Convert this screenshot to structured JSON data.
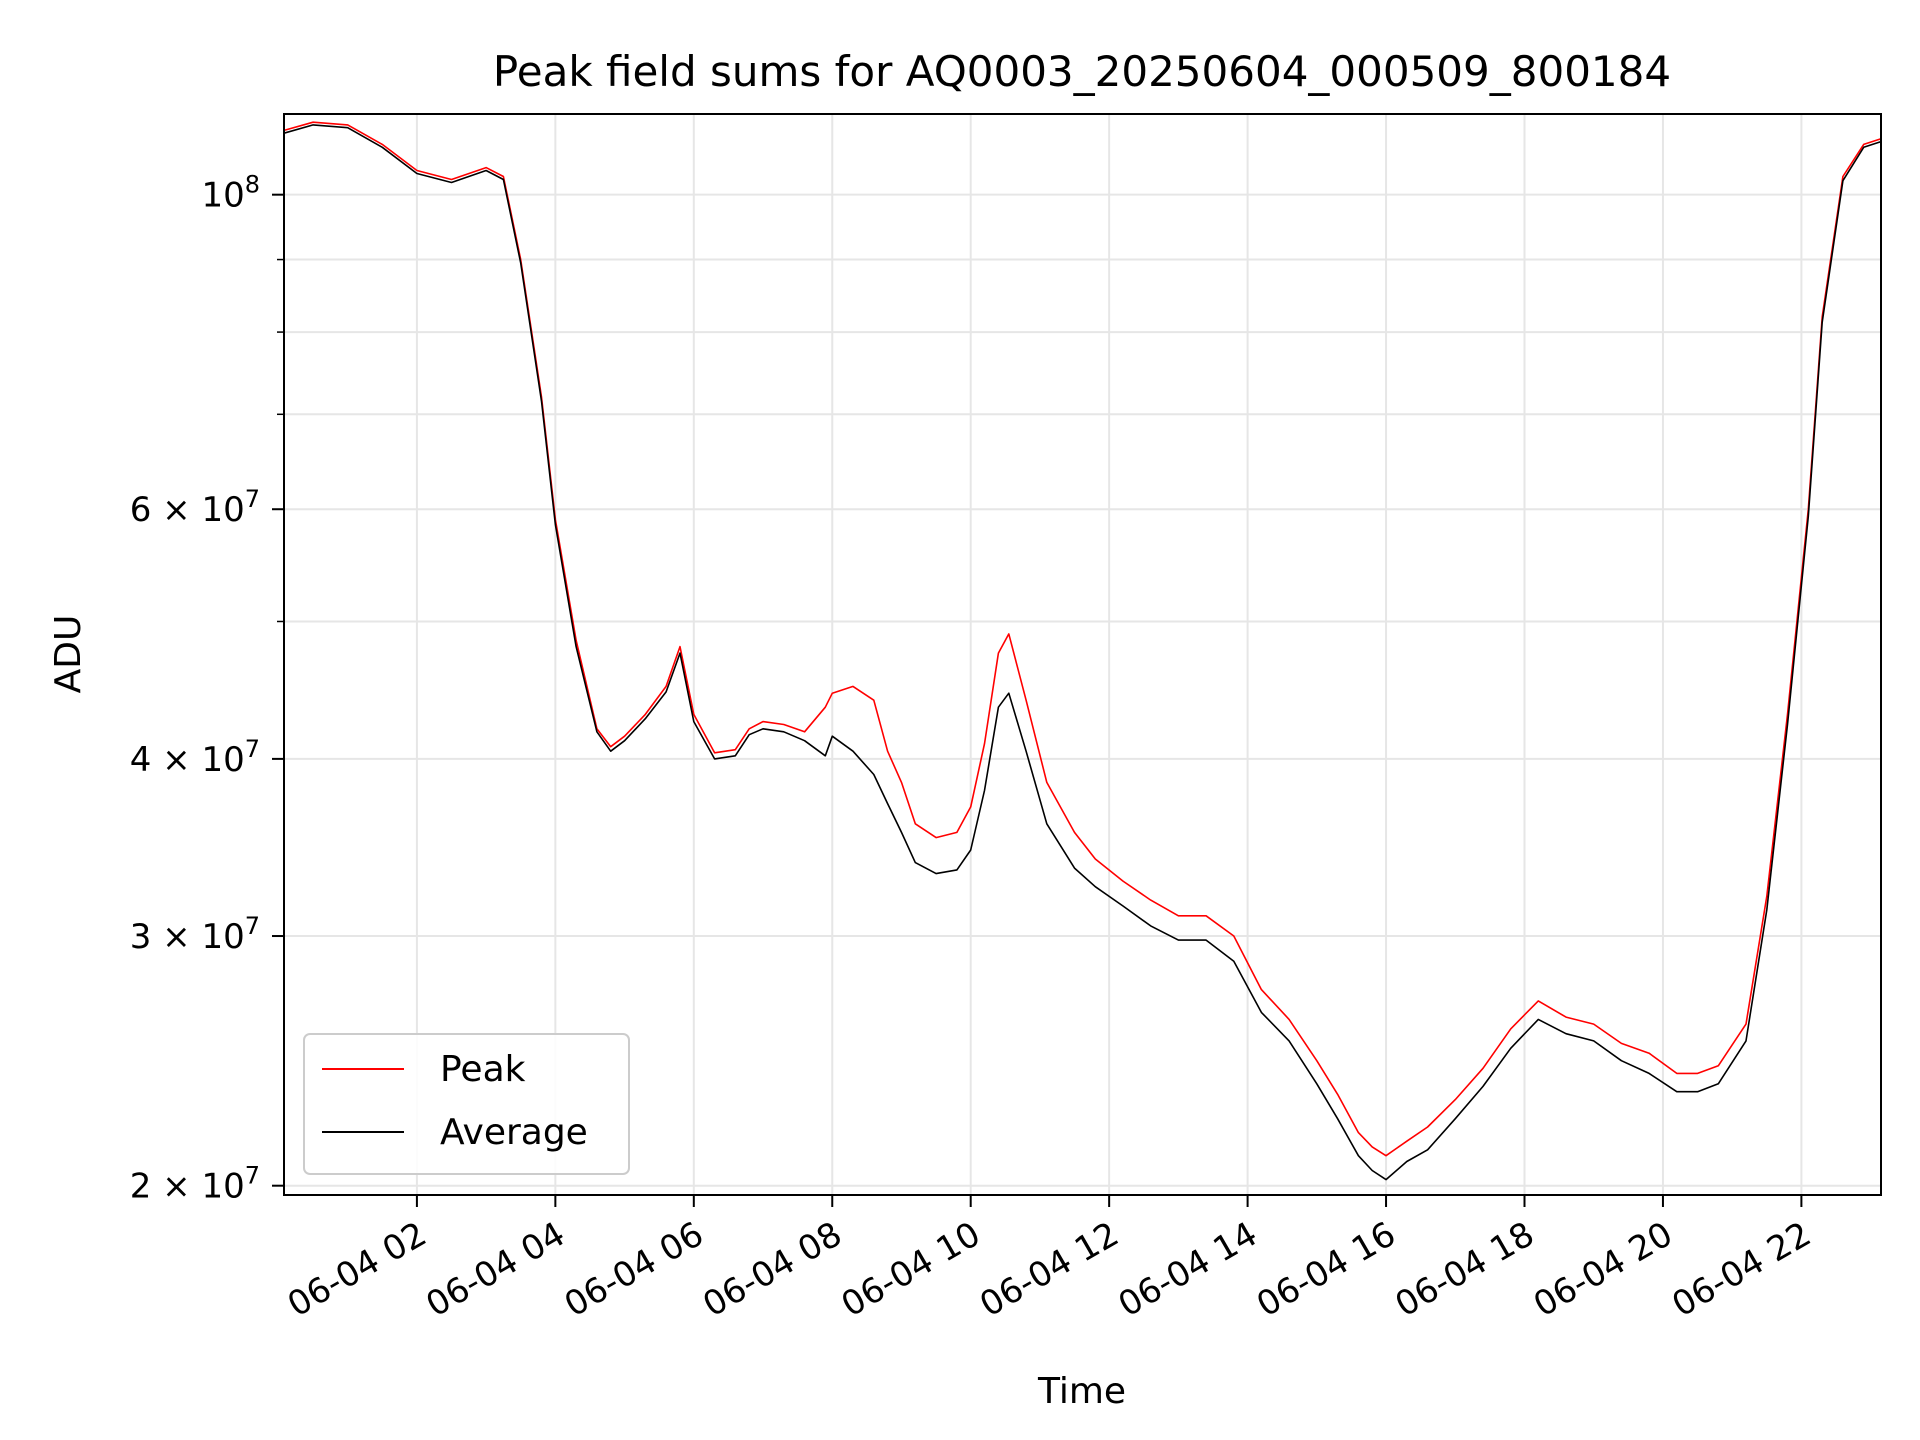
{
  "chart_data": {
    "type": "line",
    "title": "Peak field sums for AQ0003_20250604_000509_800184",
    "xlabel": "Time",
    "ylabel": "ADU",
    "x_unit": "hours",
    "xlim": [
      0.08,
      23.15
    ],
    "ylim": [
      19700000,
      114000000
    ],
    "yscale": "log",
    "grid": true,
    "legend_position": "lower-left",
    "x_ticks": [
      {
        "value": 2,
        "label": "06-04 02"
      },
      {
        "value": 4,
        "label": "06-04 04"
      },
      {
        "value": 6,
        "label": "06-04 06"
      },
      {
        "value": 8,
        "label": "06-04 08"
      },
      {
        "value": 10,
        "label": "06-04 10"
      },
      {
        "value": 12,
        "label": "06-04 12"
      },
      {
        "value": 14,
        "label": "06-04 14"
      },
      {
        "value": 16,
        "label": "06-04 16"
      },
      {
        "value": 18,
        "label": "06-04 18"
      },
      {
        "value": 20,
        "label": "06-04 20"
      },
      {
        "value": 22,
        "label": "06-04 22"
      }
    ],
    "y_ticks": [
      {
        "value": 20000000,
        "base": "2 × 10",
        "exp": "7"
      },
      {
        "value": 30000000,
        "base": "3 × 10",
        "exp": "7"
      },
      {
        "value": 40000000,
        "base": "4 × 10",
        "exp": "7"
      },
      {
        "value": 60000000,
        "base": "6 × 10",
        "exp": "7"
      },
      {
        "value": 100000000,
        "base": "10",
        "exp": "8"
      }
    ],
    "y_minor_ticks": [
      50000000,
      70000000,
      80000000,
      90000000
    ],
    "series": [
      {
        "name": "Peak",
        "color": "#ff0000",
        "x": [
          0.08,
          0.5,
          1.0,
          1.5,
          2.0,
          2.5,
          3.0,
          3.25,
          3.5,
          3.8,
          4.0,
          4.3,
          4.6,
          4.8,
          5.0,
          5.3,
          5.6,
          5.8,
          6.0,
          6.3,
          6.6,
          6.8,
          7.0,
          7.3,
          7.6,
          7.9,
          8.0,
          8.3,
          8.6,
          8.8,
          9.0,
          9.2,
          9.5,
          9.8,
          10.0,
          10.2,
          10.4,
          10.55,
          10.8,
          11.1,
          11.5,
          11.8,
          12.2,
          12.6,
          13.0,
          13.4,
          13.8,
          14.2,
          14.6,
          15.0,
          15.3,
          15.6,
          15.8,
          16.0,
          16.3,
          16.6,
          17.0,
          17.4,
          17.8,
          18.2,
          18.6,
          19.0,
          19.4,
          19.8,
          20.2,
          20.5,
          20.8,
          21.2,
          21.5,
          21.8,
          22.1,
          22.3,
          22.6,
          22.9,
          23.15
        ],
        "y": [
          111000000,
          112500000,
          112000000,
          108500000,
          104000000,
          102500000,
          104500000,
          103000000,
          90000000,
          72000000,
          59000000,
          48500000,
          42000000,
          40800000,
          41500000,
          43000000,
          45000000,
          48000000,
          43000000,
          40400000,
          40600000,
          42000000,
          42500000,
          42300000,
          41800000,
          43500000,
          44500000,
          45000000,
          44000000,
          40500000,
          38500000,
          36000000,
          35200000,
          35500000,
          37000000,
          41000000,
          47500000,
          49000000,
          44000000,
          38500000,
          35500000,
          34000000,
          32800000,
          31800000,
          31000000,
          31000000,
          30000000,
          27500000,
          26200000,
          24500000,
          23200000,
          21800000,
          21300000,
          21000000,
          21500000,
          22000000,
          23000000,
          24200000,
          25800000,
          27000000,
          26300000,
          26000000,
          25200000,
          24800000,
          24000000,
          24000000,
          24300000,
          26000000,
          32000000,
          43000000,
          60000000,
          82000000,
          103000000,
          108500000,
          109500000
        ]
      },
      {
        "name": "Average",
        "color": "#000000",
        "x": [
          0.08,
          0.5,
          1.0,
          1.5,
          2.0,
          2.5,
          3.0,
          3.25,
          3.5,
          3.8,
          4.0,
          4.3,
          4.6,
          4.8,
          5.0,
          5.3,
          5.6,
          5.8,
          6.0,
          6.3,
          6.6,
          6.8,
          7.0,
          7.3,
          7.6,
          7.9,
          8.0,
          8.3,
          8.6,
          8.8,
          9.0,
          9.2,
          9.5,
          9.8,
          10.0,
          10.2,
          10.4,
          10.55,
          10.8,
          11.1,
          11.5,
          11.8,
          12.2,
          12.6,
          13.0,
          13.4,
          13.8,
          14.2,
          14.6,
          15.0,
          15.3,
          15.6,
          15.8,
          16.0,
          16.3,
          16.6,
          17.0,
          17.4,
          17.8,
          18.2,
          18.6,
          19.0,
          19.4,
          19.8,
          20.2,
          20.5,
          20.8,
          21.2,
          21.5,
          21.8,
          22.1,
          22.3,
          22.6,
          22.9,
          23.15
        ],
        "y": [
          110500000,
          112000000,
          111500000,
          108000000,
          103500000,
          102000000,
          104000000,
          102500000,
          89500000,
          71500000,
          58500000,
          48000000,
          41800000,
          40500000,
          41200000,
          42700000,
          44600000,
          47500000,
          42500000,
          40000000,
          40200000,
          41600000,
          42000000,
          41800000,
          41200000,
          40200000,
          41500000,
          40500000,
          39000000,
          37200000,
          35500000,
          33800000,
          33200000,
          33400000,
          34500000,
          38000000,
          43500000,
          44500000,
          40500000,
          36000000,
          33500000,
          32500000,
          31500000,
          30500000,
          29800000,
          29800000,
          28800000,
          26500000,
          25300000,
          23600000,
          22300000,
          21000000,
          20500000,
          20200000,
          20800000,
          21200000,
          22300000,
          23500000,
          25000000,
          26200000,
          25600000,
          25300000,
          24500000,
          24000000,
          23300000,
          23300000,
          23600000,
          25300000,
          31300000,
          42300000,
          59300000,
          81300000,
          102300000,
          108000000,
          109000000
        ]
      }
    ]
  }
}
